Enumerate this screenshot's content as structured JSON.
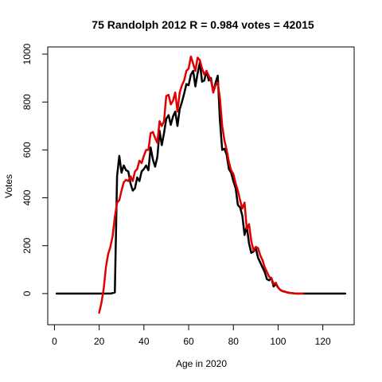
{
  "chart_data": {
    "type": "line",
    "title": "75 Randolph 2012 R = 0.984 votes = 42015",
    "xlabel": "Age in 2020",
    "ylabel": "Votes",
    "xlim": [
      -3,
      134
    ],
    "ylim": [
      -130,
      1030
    ],
    "xticks": [
      0,
      20,
      40,
      60,
      80,
      100,
      120
    ],
    "yticks": [
      0,
      200,
      400,
      600,
      800,
      1000
    ],
    "grid": false,
    "legend": "none",
    "series": [
      {
        "color": "#000000",
        "x": [
          1,
          5,
          10,
          15,
          20,
          24,
          25,
          26,
          27,
          28,
          29,
          30,
          31,
          32,
          33,
          34,
          35,
          36,
          37,
          38,
          39,
          40,
          41,
          42,
          43,
          44,
          45,
          46,
          47,
          48,
          49,
          50,
          51,
          52,
          53,
          54,
          55,
          56,
          57,
          58,
          59,
          60,
          61,
          62,
          63,
          64,
          65,
          66,
          67,
          68,
          69,
          70,
          71,
          72,
          73,
          74,
          75,
          76,
          77,
          78,
          79,
          80,
          81,
          82,
          83,
          84,
          85,
          86,
          87,
          88,
          89,
          90,
          91,
          92,
          93,
          94,
          95,
          96,
          97,
          98,
          99,
          100,
          101,
          102,
          103,
          104,
          105,
          106,
          107,
          108,
          110,
          115,
          120,
          125,
          130
        ],
        "y": [
          0,
          0,
          0,
          0,
          0,
          0,
          0,
          2,
          5,
          490,
          575,
          505,
          535,
          515,
          510,
          460,
          430,
          440,
          485,
          470,
          510,
          520,
          535,
          515,
          610,
          560,
          530,
          570,
          680,
          620,
          670,
          730,
          745,
          705,
          740,
          760,
          700,
          770,
          800,
          835,
          875,
          870,
          915,
          930,
          865,
          920,
          965,
          885,
          890,
          930,
          890,
          900,
          840,
          880,
          910,
          720,
          600,
          605,
          580,
          520,
          505,
          470,
          440,
          370,
          360,
          325,
          245,
          280,
          210,
          170,
          175,
          190,
          150,
          130,
          110,
          90,
          60,
          55,
          65,
          30,
          40,
          25,
          15,
          10,
          8,
          5,
          3,
          2,
          1,
          0,
          0,
          0,
          0,
          0,
          0
        ]
      },
      {
        "color": "#e00000",
        "x": [
          20,
          21,
          22,
          23,
          24,
          25,
          26,
          27,
          28,
          29,
          30,
          31,
          32,
          33,
          34,
          35,
          36,
          37,
          38,
          39,
          40,
          41,
          42,
          43,
          44,
          45,
          46,
          47,
          48,
          49,
          50,
          51,
          52,
          53,
          54,
          55,
          56,
          57,
          58,
          59,
          60,
          61,
          62,
          63,
          64,
          65,
          66,
          67,
          68,
          69,
          70,
          71,
          72,
          73,
          74,
          75,
          76,
          77,
          78,
          79,
          80,
          81,
          82,
          83,
          84,
          85,
          86,
          87,
          88,
          89,
          90,
          91,
          92,
          93,
          94,
          95,
          96,
          97,
          98,
          99,
          100,
          101,
          102,
          103,
          104,
          105,
          106,
          107,
          108,
          109,
          110,
          111
        ],
        "y": [
          -80,
          -40,
          20,
          110,
          165,
          195,
          240,
          320,
          380,
          390,
          430,
          465,
          475,
          470,
          490,
          470,
          510,
          520,
          555,
          545,
          575,
          600,
          600,
          670,
          675,
          650,
          630,
          720,
          700,
          720,
          825,
          830,
          790,
          805,
          840,
          760,
          840,
          870,
          890,
          930,
          940,
          990,
          960,
          930,
          985,
          975,
          940,
          915,
          930,
          910,
          890,
          840,
          870,
          880,
          815,
          700,
          640,
          600,
          550,
          515,
          500,
          460,
          430,
          390,
          355,
          380,
          270,
          290,
          220,
          180,
          195,
          190,
          160,
          140,
          110,
          90,
          70,
          65,
          40,
          45,
          25,
          15,
          10,
          8,
          5,
          3,
          2,
          1,
          0,
          0,
          0,
          0
        ]
      }
    ]
  }
}
